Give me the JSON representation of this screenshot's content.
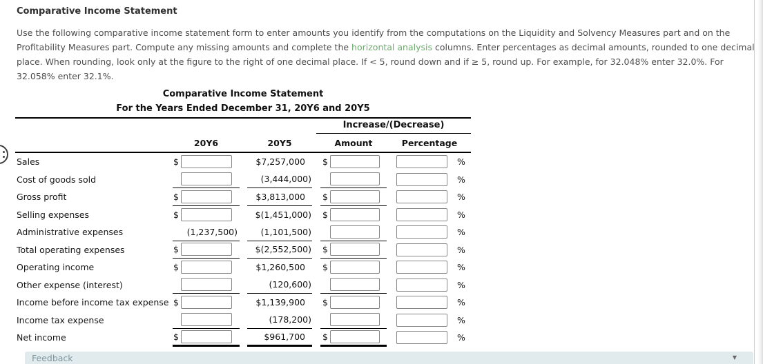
{
  "page": {
    "title": "Comparative Income Statement",
    "instructions": {
      "line1": "Use the following comparative income statement form to enter amounts you identify from the computations on the Liquidity and Solvency Measures part and on the",
      "line2_pre": "Profitability Measures part. Compute any missing amounts and complete the ",
      "line2_link": "horizontal analysis",
      "line2_post": " columns. Enter percentages as decimal amounts, rounded to one decimal",
      "line3": "place. When rounding, look only at the figure to the right of one decimal place. If < 5, round down and if ≥ 5, round up. For example, for 32.048% enter 32.0%. For",
      "line4": "32.058% enter 32.1%."
    },
    "feedback": {
      "label": "Feedback",
      "collapse_icon": "▼"
    }
  },
  "statement": {
    "title": "Comparative Income Statement",
    "subtitle": "For the Years Ended December 31, 20Y6 and 20Y5",
    "group_header": "Increase/(Decrease)",
    "columns": [
      "20Y6",
      "20Y5",
      "Amount",
      "Percentage"
    ],
    "percent_suffix": "%",
    "rows": [
      {
        "label": "Sales",
        "y6_dollar": "$",
        "y6_static": null,
        "y5": "$7,257,000",
        "amt_dollar": "$",
        "underline": "none"
      },
      {
        "label": "Cost of goods sold",
        "y6_dollar": "",
        "y6_static": null,
        "y5": "(3,444,000)",
        "amt_dollar": "",
        "underline": "single"
      },
      {
        "label": "Gross profit",
        "y6_dollar": "$",
        "y6_static": null,
        "y5": "$3,813,000",
        "amt_dollar": "$",
        "underline": "single"
      },
      {
        "label": "Selling expenses",
        "y6_dollar": "$",
        "y6_static": null,
        "y5": "$(1,451,000)",
        "amt_dollar": "$",
        "underline": "none"
      },
      {
        "label": "Administrative expenses",
        "y6_dollar": "",
        "y6_static": "(1,237,500)",
        "y5": "(1,101,500)",
        "amt_dollar": "",
        "underline": "single"
      },
      {
        "label": "Total operating expenses",
        "y6_dollar": "$",
        "y6_static": null,
        "y5": "$(2,552,500)",
        "amt_dollar": "$",
        "underline": "single"
      },
      {
        "label": "Operating income",
        "y6_dollar": "$",
        "y6_static": null,
        "y5": "$1,260,500",
        "amt_dollar": "$",
        "underline": "none"
      },
      {
        "label": "Other expense (interest)",
        "y6_dollar": "",
        "y6_static": null,
        "y5": "(120,600)",
        "amt_dollar": "",
        "underline": "single"
      },
      {
        "label": "Income before income tax expense",
        "y6_dollar": "$",
        "y6_static": null,
        "y5": "$1,139,900",
        "amt_dollar": "$",
        "underline": "none"
      },
      {
        "label": "Income tax expense",
        "y6_dollar": "",
        "y6_static": null,
        "y5": "(178,200)",
        "amt_dollar": "",
        "underline": "single"
      },
      {
        "label": "Net income",
        "y6_dollar": "$",
        "y6_static": null,
        "y5": "$961,700",
        "amt_dollar": "$",
        "underline": "double"
      }
    ]
  }
}
